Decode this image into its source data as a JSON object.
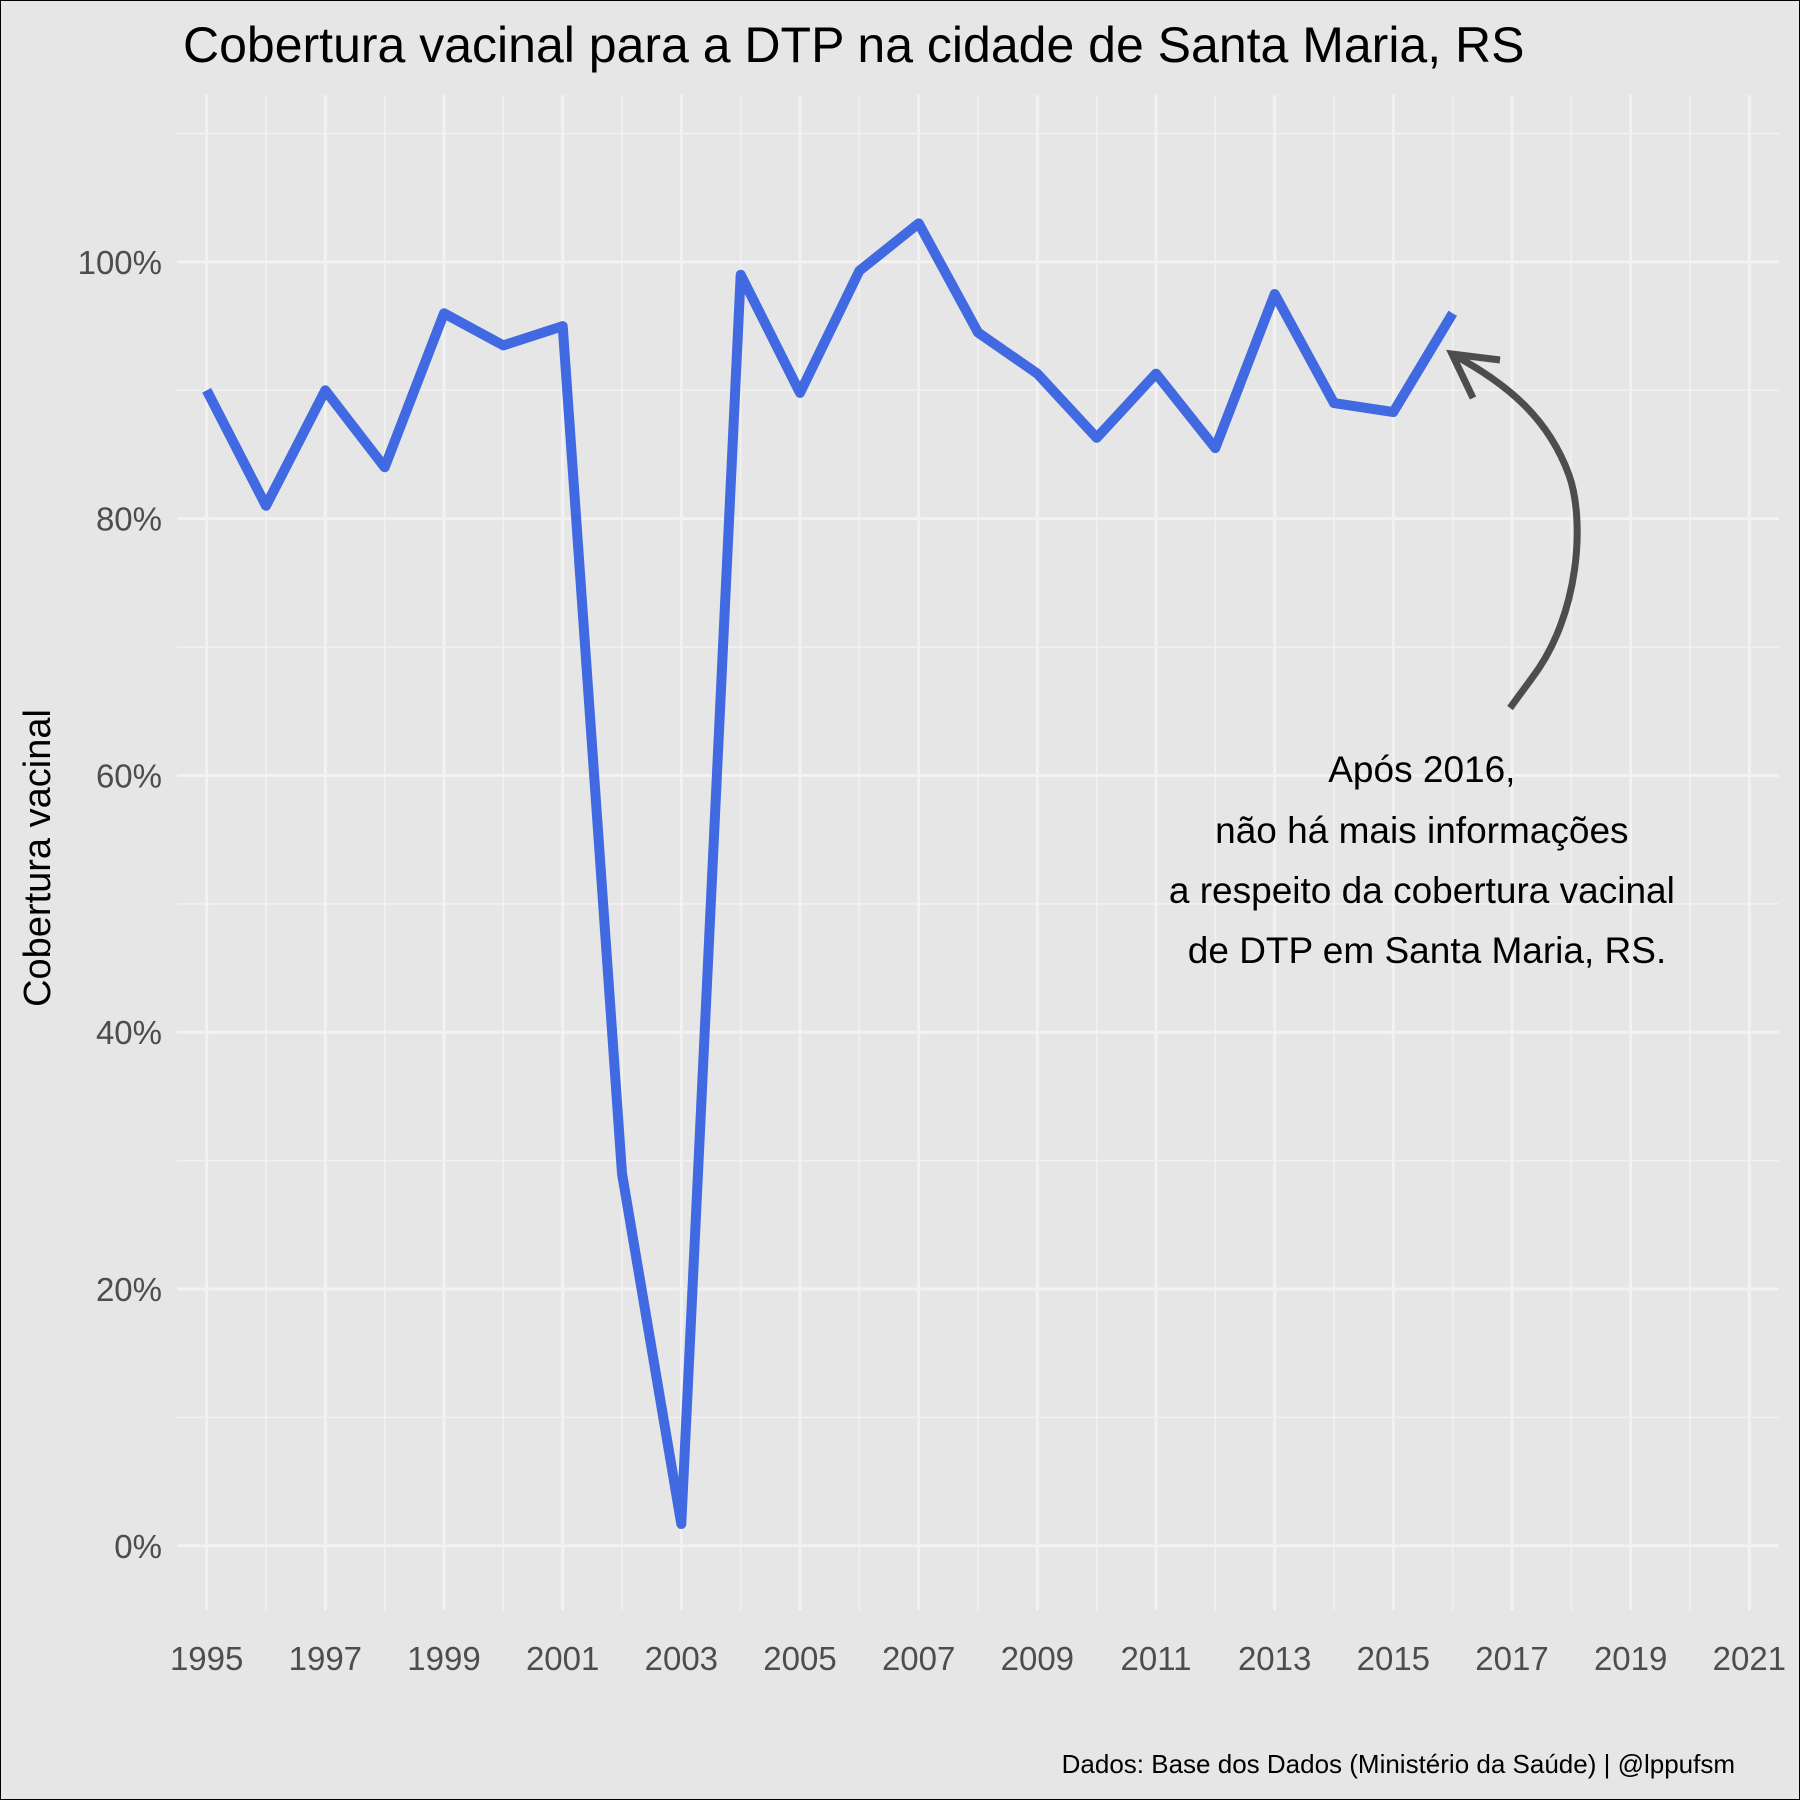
{
  "chart_data": {
    "type": "line",
    "title": "Cobertura vacinal para a DTP na cidade de Santa Maria, RS",
    "ylabel": "Cobertura vacinal",
    "xlabel": "",
    "caption": "Dados: Base dos Dados (Ministério da Saúde) | @lppufsm",
    "x": [
      1995,
      1996,
      1997,
      1998,
      1999,
      2000,
      2001,
      2002,
      2003,
      2004,
      2005,
      2006,
      2007,
      2008,
      2009,
      2010,
      2011,
      2012,
      2013,
      2014,
      2015,
      2016
    ],
    "series": [
      {
        "values": [
          90.0,
          81.0,
          90.0,
          84.0,
          96.0,
          93.5,
          95.0,
          29.0,
          1.7,
          99.0,
          89.8,
          99.3,
          103.0,
          94.5,
          91.3,
          86.3,
          91.3,
          85.5,
          97.5,
          89.0,
          88.3,
          96.0
        ]
      }
    ],
    "xlim": [
      1994.5,
      2021.5
    ],
    "ylim": [
      -5,
      113
    ],
    "xticks": [
      1995,
      1997,
      1999,
      2001,
      2003,
      2005,
      2007,
      2009,
      2011,
      2013,
      2015,
      2017,
      2019,
      2021
    ],
    "yticks": [
      0,
      20,
      40,
      60,
      80,
      100
    ],
    "ytick_labels": [
      "0%",
      "20%",
      "40%",
      "60%",
      "80%",
      "100%"
    ],
    "grid": true,
    "colors": {
      "line": "#4169E1",
      "background": "#E6E6E6",
      "grid": "#F2F2F2",
      "arrow": "#4D4D4D"
    },
    "annotation": {
      "lines": [
        "Após 2016,",
        "não há mais informações",
        "a respeito da cobertura vacinal",
        "de DTP em Santa Maria, RS."
      ]
    }
  }
}
